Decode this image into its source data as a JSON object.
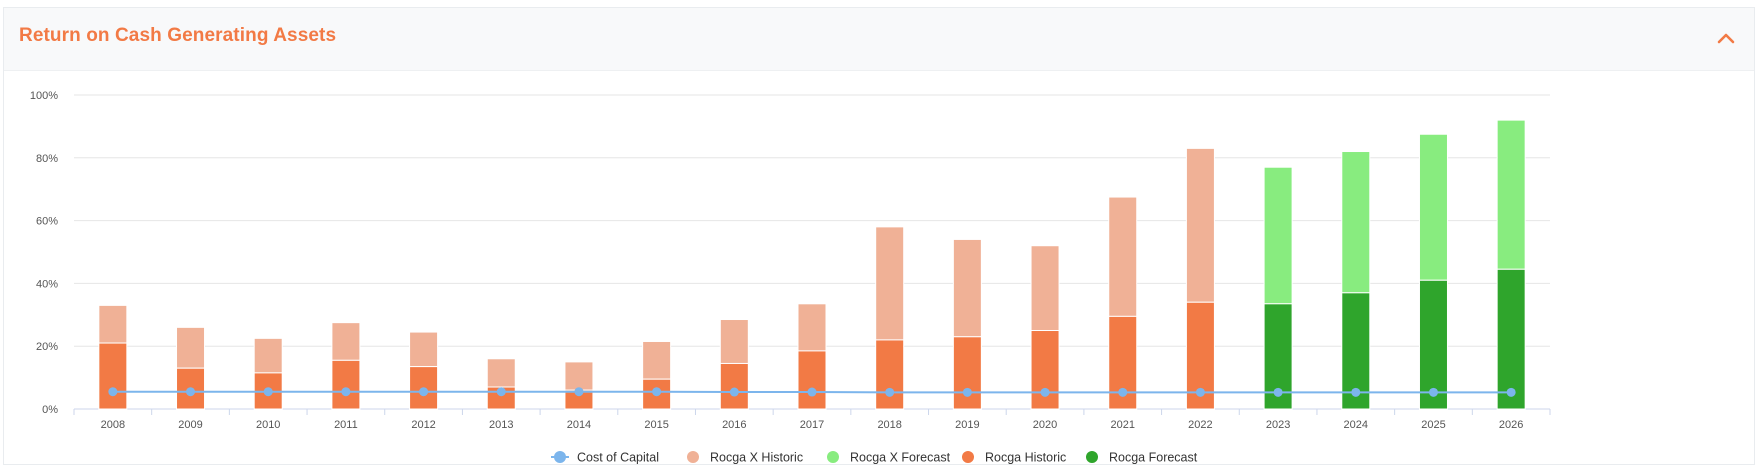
{
  "header": {
    "title": "Return on Cash Generating Assets"
  },
  "icons": {
    "collapse": "chevron-up-icon"
  },
  "colors": {
    "accent": "#f27a45",
    "cost_of_capital": "#7cb5ec",
    "rocga_x_historic": "#f0b196",
    "rocga_x_forecast": "#88ec7f",
    "rocga_historic": "#f27a45",
    "rocga_forecast": "#2fa52c"
  },
  "chart_data": {
    "type": "bar",
    "stacked": true,
    "categories": [
      "2008",
      "2009",
      "2010",
      "2011",
      "2012",
      "2013",
      "2014",
      "2015",
      "2016",
      "2017",
      "2018",
      "2019",
      "2020",
      "2021",
      "2022",
      "2023",
      "2024",
      "2025",
      "2026"
    ],
    "ylim": [
      0,
      100
    ],
    "yticks": [
      "0%",
      "20%",
      "40%",
      "60%",
      "80%",
      "100%"
    ],
    "grid": true,
    "legend_position": "bottom",
    "series": [
      {
        "name": "Cost of Capital",
        "type": "line",
        "values": [
          5.5,
          5.5,
          5.5,
          5.5,
          5.5,
          5.5,
          5.5,
          5.5,
          5.4,
          5.4,
          5.3,
          5.3,
          5.3,
          5.3,
          5.3,
          5.3,
          5.3,
          5.3,
          5.3
        ]
      },
      {
        "name": "Rocga X Historic",
        "type": "bar",
        "stack": "top",
        "values": [
          12,
          13,
          11,
          12,
          11,
          9,
          9,
          12,
          14,
          15,
          36,
          31,
          27,
          38,
          49,
          null,
          null,
          null,
          null
        ]
      },
      {
        "name": "Rocga X Forecast",
        "type": "bar",
        "stack": "top",
        "values": [
          null,
          null,
          null,
          null,
          null,
          null,
          null,
          null,
          null,
          null,
          null,
          null,
          null,
          null,
          null,
          43.5,
          45,
          46.5,
          47.5
        ]
      },
      {
        "name": "Rocga Historic",
        "type": "bar",
        "stack": "base",
        "values": [
          21,
          13,
          11.5,
          15.5,
          13.5,
          7,
          6,
          9.5,
          14.5,
          18.5,
          22,
          23,
          25,
          29.5,
          34,
          null,
          null,
          null,
          null
        ]
      },
      {
        "name": "Rocga Forecast",
        "type": "bar",
        "stack": "base",
        "values": [
          null,
          null,
          null,
          null,
          null,
          null,
          null,
          null,
          null,
          null,
          null,
          null,
          null,
          null,
          null,
          33.5,
          37,
          41,
          44.5
        ]
      }
    ]
  }
}
